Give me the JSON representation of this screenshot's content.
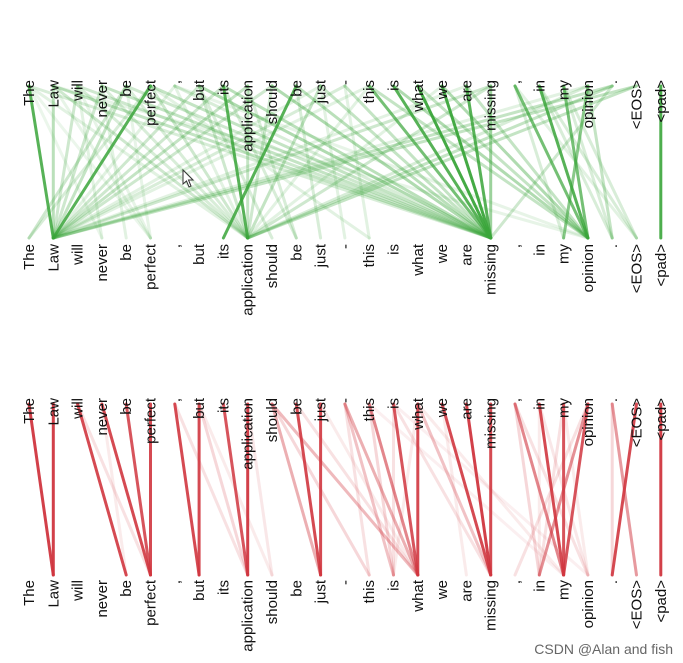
{
  "tokens": [
    "The",
    "Law",
    "will",
    "never",
    "be",
    "perfect",
    ",",
    "but",
    "its",
    "application",
    "should",
    "be",
    "just",
    "-",
    "this",
    "is",
    "what",
    "we",
    "are",
    "missing",
    ",",
    "in",
    "my",
    "opinion",
    ".",
    "<EOS>",
    "<pad>"
  ],
  "panels": [
    {
      "id": "top",
      "color": "#3aa53a",
      "links": [
        [
          0,
          1,
          0.85
        ],
        [
          1,
          1,
          0.35
        ],
        [
          2,
          1,
          0.25
        ],
        [
          3,
          1,
          0.25
        ],
        [
          4,
          1,
          0.3
        ],
        [
          5,
          1,
          0.85
        ],
        [
          4,
          0,
          0.25
        ],
        [
          5,
          0,
          0.2
        ],
        [
          2,
          3,
          0.15
        ],
        [
          3,
          4,
          0.15
        ],
        [
          4,
          5,
          0.12
        ],
        [
          1,
          5,
          0.12
        ],
        [
          0,
          5,
          0.1
        ],
        [
          0,
          3,
          0.1
        ],
        [
          2,
          5,
          0.12
        ],
        [
          7,
          9,
          0.25
        ],
        [
          8,
          9,
          0.85
        ],
        [
          9,
          9,
          0.3
        ],
        [
          10,
          9,
          0.25
        ],
        [
          11,
          8,
          0.85
        ],
        [
          12,
          9,
          0.3
        ],
        [
          7,
          10,
          0.2
        ],
        [
          8,
          11,
          0.2
        ],
        [
          9,
          11,
          0.2
        ],
        [
          11,
          12,
          0.2
        ],
        [
          12,
          13,
          0.15
        ],
        [
          13,
          14,
          0.15
        ],
        [
          7,
          19,
          0.4
        ],
        [
          8,
          19,
          0.35
        ],
        [
          10,
          19,
          0.4
        ],
        [
          11,
          19,
          0.35
        ],
        [
          12,
          19,
          0.3
        ],
        [
          13,
          19,
          0.3
        ],
        [
          14,
          19,
          0.7
        ],
        [
          15,
          19,
          0.85
        ],
        [
          16,
          19,
          0.95
        ],
        [
          17,
          19,
          0.95
        ],
        [
          18,
          19,
          0.85
        ],
        [
          19,
          19,
          0.5
        ],
        [
          14,
          23,
          0.3
        ],
        [
          15,
          23,
          0.4
        ],
        [
          16,
          23,
          0.3
        ],
        [
          17,
          23,
          0.4
        ],
        [
          18,
          23,
          0.3
        ],
        [
          20,
          23,
          0.7
        ],
        [
          21,
          23,
          0.85
        ],
        [
          22,
          23,
          0.7
        ],
        [
          23,
          22,
          0.6
        ],
        [
          23,
          24,
          0.3
        ],
        [
          20,
          25,
          0.15
        ],
        [
          21,
          24,
          0.2
        ],
        [
          22,
          24,
          0.2
        ],
        [
          20,
          22,
          0.2
        ],
        [
          21,
          25,
          0.2
        ],
        [
          22,
          25,
          0.2
        ],
        [
          24,
          1,
          0.3
        ],
        [
          25,
          1,
          0.3
        ],
        [
          24,
          9,
          0.3
        ],
        [
          25,
          9,
          0.3
        ],
        [
          24,
          19,
          0.25
        ],
        [
          23,
          9,
          0.2
        ],
        [
          23,
          1,
          0.15
        ],
        [
          0,
          19,
          0.2
        ],
        [
          1,
          19,
          0.3
        ],
        [
          2,
          19,
          0.25
        ],
        [
          3,
          19,
          0.3
        ],
        [
          4,
          19,
          0.25
        ],
        [
          5,
          19,
          0.3
        ],
        [
          5,
          9,
          0.25
        ],
        [
          6,
          19,
          0.2
        ],
        [
          6,
          9,
          0.15
        ],
        [
          6,
          1,
          0.15
        ],
        [
          5,
          14,
          0.15
        ],
        [
          2,
          9,
          0.2
        ],
        [
          3,
          9,
          0.2
        ],
        [
          4,
          9,
          0.2
        ],
        [
          1,
          9,
          0.25
        ],
        [
          0,
          9,
          0.15
        ],
        [
          6,
          23,
          0.12
        ],
        [
          1,
          23,
          0.12
        ],
        [
          7,
          1,
          0.25
        ],
        [
          8,
          1,
          0.25
        ],
        [
          9,
          1,
          0.3
        ],
        [
          10,
          1,
          0.25
        ],
        [
          12,
          1,
          0.15
        ],
        [
          13,
          1,
          0.2
        ],
        [
          14,
          1,
          0.15
        ],
        [
          19,
          1,
          0.25
        ],
        [
          18,
          1,
          0.15
        ],
        [
          19,
          9,
          0.25
        ],
        [
          17,
          9,
          0.15
        ],
        [
          14,
          9,
          0.15
        ],
        [
          26,
          26,
          0.9
        ]
      ]
    },
    {
      "id": "bottom",
      "color": "#d0363f",
      "links": [
        [
          0,
          1,
          0.95
        ],
        [
          1,
          1,
          0.95
        ],
        [
          2,
          4,
          0.9
        ],
        [
          3,
          5,
          0.9
        ],
        [
          4,
          5,
          0.85
        ],
        [
          5,
          5,
          0.9
        ],
        [
          2,
          5,
          0.15
        ],
        [
          3,
          4,
          0.1
        ],
        [
          7,
          7,
          0.9
        ],
        [
          6,
          7,
          0.9
        ],
        [
          8,
          9,
          0.85
        ],
        [
          9,
          9,
          0.95
        ],
        [
          7,
          9,
          0.2
        ],
        [
          6,
          9,
          0.15
        ],
        [
          7,
          10,
          0.1
        ],
        [
          9,
          10,
          0.12
        ],
        [
          10,
          12,
          0.4
        ],
        [
          11,
          12,
          0.9
        ],
        [
          12,
          12,
          0.9
        ],
        [
          10,
          16,
          0.35
        ],
        [
          10,
          14,
          0.2
        ],
        [
          11,
          16,
          0.15
        ],
        [
          12,
          16,
          0.1
        ],
        [
          13,
          16,
          0.4
        ],
        [
          14,
          16,
          0.6
        ],
        [
          15,
          16,
          0.85
        ],
        [
          16,
          16,
          0.9
        ],
        [
          13,
          15,
          0.3
        ],
        [
          14,
          15,
          0.2
        ],
        [
          13,
          14,
          0.15
        ],
        [
          15,
          15,
          0.15
        ],
        [
          16,
          15,
          0.1
        ],
        [
          17,
          19,
          0.9
        ],
        [
          18,
          19,
          0.95
        ],
        [
          19,
          19,
          0.9
        ],
        [
          16,
          19,
          0.3
        ],
        [
          15,
          19,
          0.15
        ],
        [
          17,
          18,
          0.1
        ],
        [
          20,
          22,
          0.6
        ],
        [
          21,
          22,
          0.9
        ],
        [
          22,
          22,
          0.85
        ],
        [
          23,
          22,
          0.85
        ],
        [
          23,
          21,
          0.55
        ],
        [
          20,
          21,
          0.2
        ],
        [
          22,
          21,
          0.15
        ],
        [
          23,
          20,
          0.15
        ],
        [
          22,
          23,
          0.1
        ],
        [
          21,
          23,
          0.12
        ],
        [
          20,
          23,
          0.15
        ],
        [
          21,
          21,
          0.1
        ],
        [
          16,
          22,
          0.1
        ],
        [
          15,
          23,
          0.08
        ],
        [
          14,
          22,
          0.08
        ],
        [
          24,
          25,
          0.5
        ],
        [
          25,
          24,
          0.9
        ],
        [
          24,
          24,
          0.2
        ],
        [
          26,
          26,
          0.95
        ]
      ]
    }
  ],
  "watermark": "CSDN @Alan and fish"
}
